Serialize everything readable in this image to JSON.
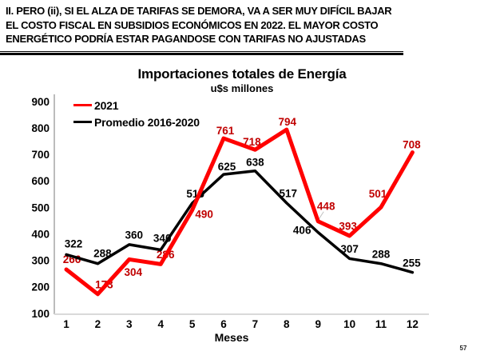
{
  "header": {
    "lines": [
      "II. PERO (ii), SI EL ALZA DE TARIFAS SE DEMORA, VA A SER MUY DIFÍCIL BAJAR",
      "EL COSTO FISCAL EN SUBSIDIOS ECONÓMICOS EN 2022. EL MAYOR COSTO",
      "ENERGÉTICO PODRÍA ESTAR PAGANDOSE CON TARIFAS NO AJUSTADAS"
    ]
  },
  "chart_data": {
    "type": "line",
    "title": "Importaciones totales de Energía",
    "subtitle": "u$s millones",
    "xlabel": "Meses",
    "ylabel": "",
    "categories": [
      "1",
      "2",
      "3",
      "4",
      "5",
      "6",
      "7",
      "8",
      "9",
      "10",
      "11",
      "12"
    ],
    "yticks": [
      100,
      200,
      300,
      400,
      500,
      600,
      700,
      800,
      900
    ],
    "ylim": [
      100,
      900
    ],
    "grid": false,
    "legend_position": "top-left",
    "axis_color": "#a6a6a6",
    "baseline_color": "#d9d9d9",
    "series": [
      {
        "name": "2021",
        "color": "#ff0000",
        "label_color": "#c00000",
        "line_width": 5,
        "values": [
          266,
          173,
          304,
          286,
          490,
          761,
          718,
          794,
          448,
          393,
          501,
          708
        ],
        "label_offsets": [
          [
            7,
            -13
          ],
          [
            8,
            -12
          ],
          [
            5,
            16
          ],
          [
            6,
            -12
          ],
          [
            15,
            5
          ],
          [
            2,
            -10
          ],
          [
            -4,
            -10
          ],
          [
            1,
            -10
          ],
          [
            10,
            -19
          ],
          [
            -2,
            -12
          ],
          [
            -4,
            -17
          ],
          [
            -1,
            -10
          ]
        ],
        "leader_indices": [
          8
        ]
      },
      {
        "name": "Promedio 2016-2020",
        "color": "#000000",
        "label_color": "#000000",
        "line_width": 3.5,
        "values": [
          322,
          288,
          360,
          340,
          516,
          625,
          638,
          517,
          406,
          307,
          288,
          255
        ],
        "label_offsets": [
          [
            9,
            -14
          ],
          [
            6,
            -13
          ],
          [
            6,
            -12
          ],
          [
            2,
            -15
          ],
          [
            4,
            -12
          ],
          [
            4,
            -10
          ],
          [
            0,
            -11
          ],
          [
            2,
            -12
          ],
          [
            -20,
            -3
          ],
          [
            0,
            -12
          ],
          [
            0,
            -12
          ],
          [
            -1,
            -12
          ]
        ],
        "leader_indices": []
      }
    ]
  },
  "page_number": "57"
}
